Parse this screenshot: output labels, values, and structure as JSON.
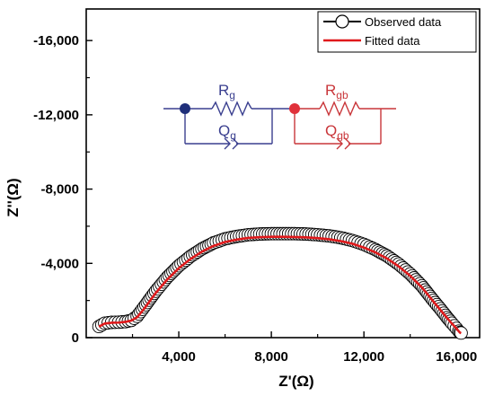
{
  "chart_data": {
    "type": "scatter",
    "xlabel": "Z'(Ω)",
    "ylabel": "Z''(Ω)",
    "xlim": [
      0,
      17000
    ],
    "ylim": [
      0,
      -17700
    ],
    "y_axis_inverted": true,
    "x_ticks": [
      {
        "value": 4000,
        "label": "4,000"
      },
      {
        "value": 8000,
        "label": "8,000"
      },
      {
        "value": 12000,
        "label": "12,000"
      },
      {
        "value": 16000,
        "label": "16,000"
      }
    ],
    "y_ticks": [
      {
        "value": 0,
        "label": "0"
      },
      {
        "value": -4000,
        "label": "-4,000"
      },
      {
        "value": -8000,
        "label": "-8,000"
      },
      {
        "value": -12000,
        "label": "-12,000"
      },
      {
        "value": -16000,
        "label": "-16,000"
      }
    ],
    "grid": false,
    "legend_placement": "top-right",
    "series": [
      {
        "name": "Observed data",
        "style": "open-circles-with-line",
        "color": "#000000",
        "x": [
          550,
          800,
          1100,
          1400,
          1700,
          1950,
          2200,
          2500,
          3000,
          3500,
          4000,
          4500,
          5000,
          5500,
          6000,
          6500,
          7000,
          7500,
          8000,
          8500,
          9000,
          9500,
          10000,
          10500,
          11000,
          11500,
          12000,
          12500,
          13000,
          13500,
          14000,
          14500,
          15000,
          15300,
          15600,
          15800,
          16000,
          16100,
          16150,
          16200
        ],
        "y": [
          -600,
          -780,
          -820,
          -830,
          -860,
          -930,
          -1150,
          -1650,
          -2500,
          -3250,
          -3870,
          -4370,
          -4780,
          -5100,
          -5320,
          -5450,
          -5540,
          -5580,
          -5600,
          -5600,
          -5600,
          -5580,
          -5540,
          -5480,
          -5380,
          -5230,
          -5020,
          -4740,
          -4400,
          -3960,
          -3430,
          -2790,
          -2000,
          -1550,
          -1080,
          -780,
          -500,
          -350,
          -280,
          -250
        ]
      },
      {
        "name": "Fitted data",
        "style": "line",
        "color": "#e0191b",
        "x": [
          550,
          800,
          1100,
          1400,
          1700,
          1950,
          2200,
          2500,
          3000,
          3500,
          4000,
          4500,
          5000,
          5500,
          6000,
          6500,
          7000,
          7500,
          8000,
          8500,
          9000,
          9500,
          10000,
          10500,
          11000,
          11500,
          12000,
          12500,
          13000,
          13500,
          14000,
          14500,
          15000,
          15300,
          15600,
          15800,
          16000,
          16100,
          16150,
          16200
        ],
        "y": [
          -590,
          -760,
          -800,
          -810,
          -850,
          -920,
          -1100,
          -1550,
          -2400,
          -3130,
          -3740,
          -4230,
          -4630,
          -4940,
          -5150,
          -5280,
          -5370,
          -5410,
          -5430,
          -5430,
          -5420,
          -5400,
          -5360,
          -5300,
          -5200,
          -5060,
          -4850,
          -4590,
          -4260,
          -3840,
          -3330,
          -2710,
          -1950,
          -1500,
          -1050,
          -760,
          -490,
          -340,
          -270,
          -240
        ]
      }
    ],
    "inset_circuit": {
      "elements": [
        {
          "name": "R",
          "sub": "g",
          "color": "#3a3f8f"
        },
        {
          "name": "Q",
          "sub": "g",
          "color": "#3a3f8f"
        },
        {
          "name": "R",
          "sub": "gb",
          "color": "#c9363a"
        },
        {
          "name": "Q",
          "sub": "gb",
          "color": "#c9363a"
        }
      ]
    }
  }
}
